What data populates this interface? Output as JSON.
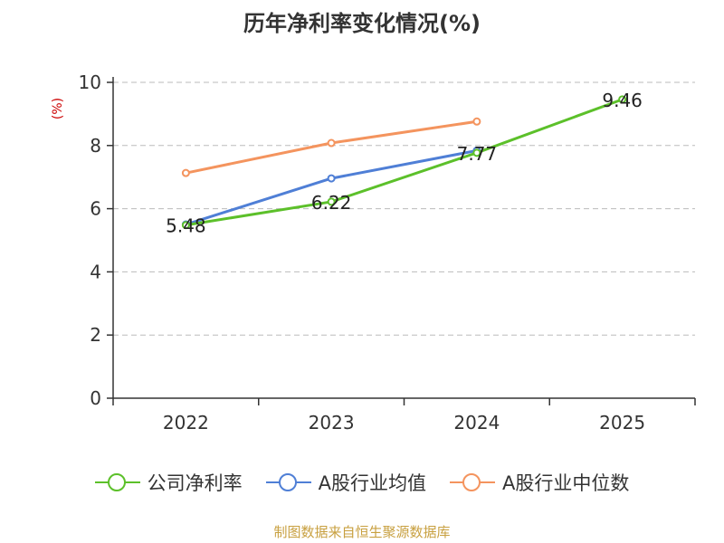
{
  "chart_data": {
    "type": "line",
    "title": "历年净利率变化情况(%)",
    "ylabel": "(%)",
    "xlabel": "",
    "categories": [
      "2022",
      "2023",
      "2024",
      "2025"
    ],
    "ylim": [
      0,
      10
    ],
    "yticks": [
      0,
      2,
      4,
      6,
      8,
      10
    ],
    "grid": true,
    "legend_position": "bottom",
    "series": [
      {
        "name": "公司净利率",
        "color": "#5cc02a",
        "values": [
          5.48,
          6.22,
          7.77,
          9.46
        ],
        "labels": [
          "5.48",
          "6.22",
          "7.77",
          "9.46"
        ]
      },
      {
        "name": "A股行业均值",
        "color": "#4f7fd6",
        "values": [
          5.5,
          6.96,
          7.84,
          null
        ],
        "labels": []
      },
      {
        "name": "A股行业中位数",
        "color": "#f4945e",
        "values": [
          7.13,
          8.08,
          8.76,
          null
        ],
        "labels": []
      }
    ]
  },
  "source": "制图数据来自恒生聚源数据库"
}
